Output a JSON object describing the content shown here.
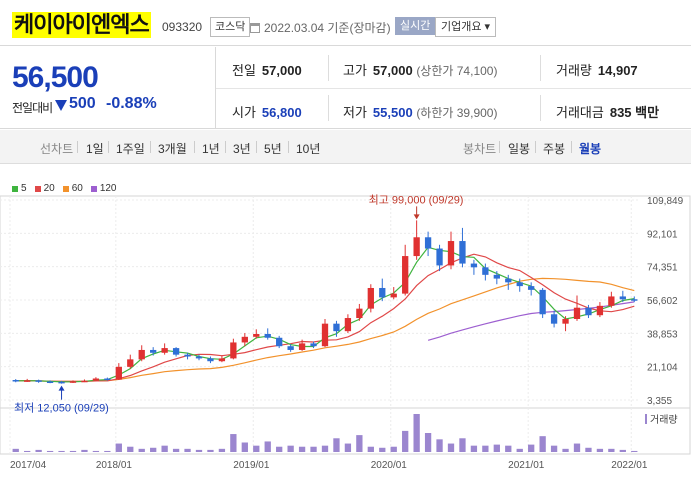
{
  "header": {
    "title": "케이아이엔엑스",
    "code": "093320",
    "market": "코스닥",
    "date": "2022.03.04 기준(장마감)",
    "realtime": "실시간",
    "overview": "기업개요 ▾"
  },
  "summary": {
    "price": "56,500",
    "change_label": "전일대비",
    "change": "500",
    "change_pct": "-0.88%",
    "prev_label": "전일",
    "prev": "57,000",
    "high_label": "고가",
    "high": "57,000",
    "upper_limit": "(상한가 74,100)",
    "volume_label": "거래량",
    "volume": "14,907",
    "open_label": "시가",
    "open": "56,800",
    "low_label": "저가",
    "low": "55,500",
    "lower_limit": "(하한가 39,900)",
    "amount_label": "거래대금",
    "amount": "835 백만"
  },
  "toolbar": {
    "line_chart": "선차트",
    "periods": [
      "1일",
      "1주일",
      "3개월",
      "1년",
      "3년",
      "5년",
      "10년"
    ],
    "candle_chart": "봉차트",
    "candles": [
      "일봉",
      "주봉",
      "월봉"
    ],
    "active_candle": "월봉"
  },
  "colors": {
    "up": "#e03131",
    "down": "#2f6fd6",
    "ma5": "#3fb43f",
    "ma20": "#e04848",
    "ma60": "#f2922c",
    "ma120": "#9d5fd0",
    "volume": "#9b86cf"
  },
  "chart_data": {
    "type": "candlestick",
    "legend": [
      "5",
      "20",
      "60",
      "120"
    ],
    "y_ticks": [
      "109,849",
      "92,101",
      "74,351",
      "56,602",
      "38,853",
      "21,104",
      "3,355"
    ],
    "ylim": [
      3355,
      109849
    ],
    "x_ticks": [
      "2017/04",
      "2018/01",
      "2019/01",
      "2020/01",
      "2021/01",
      "2022/01"
    ],
    "volume_label": "거래량",
    "annotation_high": "최고 99,000 (09/29)",
    "annotation_low": "최저 12,050 (09/29)",
    "candles": [
      {
        "o": 14000,
        "c": 13500,
        "h": 14500,
        "l": 12800
      },
      {
        "o": 13500,
        "c": 13800,
        "h": 14600,
        "l": 13000
      },
      {
        "o": 13800,
        "c": 13200,
        "h": 14200,
        "l": 12500
      },
      {
        "o": 13200,
        "c": 13000,
        "h": 13800,
        "l": 12300
      },
      {
        "o": 13000,
        "c": 12800,
        "h": 13500,
        "l": 12050
      },
      {
        "o": 12800,
        "c": 13300,
        "h": 13800,
        "l": 12400
      },
      {
        "o": 13300,
        "c": 13600,
        "h": 14300,
        "l": 12900
      },
      {
        "o": 13600,
        "c": 14800,
        "h": 15500,
        "l": 13300
      },
      {
        "o": 14800,
        "c": 14200,
        "h": 15300,
        "l": 13700
      },
      {
        "o": 14200,
        "c": 21000,
        "h": 23000,
        "l": 14000
      },
      {
        "o": 21000,
        "c": 25000,
        "h": 27500,
        "l": 20000
      },
      {
        "o": 25000,
        "c": 30000,
        "h": 32500,
        "l": 24000
      },
      {
        "o": 30000,
        "c": 28500,
        "h": 31500,
        "l": 27000
      },
      {
        "o": 28500,
        "c": 31000,
        "h": 33500,
        "l": 27500
      },
      {
        "o": 31000,
        "c": 27500,
        "h": 31500,
        "l": 26500
      },
      {
        "o": 27500,
        "c": 26500,
        "h": 28500,
        "l": 25000
      },
      {
        "o": 26500,
        "c": 25500,
        "h": 27500,
        "l": 24500
      },
      {
        "o": 25500,
        "c": 24000,
        "h": 26500,
        "l": 23000
      },
      {
        "o": 24000,
        "c": 25500,
        "h": 27000,
        "l": 23500
      },
      {
        "o": 25500,
        "c": 34000,
        "h": 36000,
        "l": 25000
      },
      {
        "o": 34000,
        "c": 37000,
        "h": 39000,
        "l": 32000
      },
      {
        "o": 37000,
        "c": 38500,
        "h": 41000,
        "l": 36000
      },
      {
        "o": 38500,
        "c": 36500,
        "h": 41500,
        "l": 35500
      },
      {
        "o": 36500,
        "c": 32000,
        "h": 37500,
        "l": 31000
      },
      {
        "o": 32000,
        "c": 30000,
        "h": 33000,
        "l": 29000
      },
      {
        "o": 30000,
        "c": 33500,
        "h": 35500,
        "l": 29500
      },
      {
        "o": 33500,
        "c": 32000,
        "h": 34500,
        "l": 31000
      },
      {
        "o": 32000,
        "c": 44000,
        "h": 46500,
        "l": 31500
      },
      {
        "o": 44000,
        "c": 40000,
        "h": 45500,
        "l": 37000
      },
      {
        "o": 40000,
        "c": 47000,
        "h": 49000,
        "l": 39000
      },
      {
        "o": 47000,
        "c": 52000,
        "h": 54500,
        "l": 45500
      },
      {
        "o": 52000,
        "c": 63000,
        "h": 65000,
        "l": 50000
      },
      {
        "o": 63000,
        "c": 58000,
        "h": 68000,
        "l": 56000
      },
      {
        "o": 58000,
        "c": 60000,
        "h": 63500,
        "l": 57000
      },
      {
        "o": 60000,
        "c": 80000,
        "h": 86000,
        "l": 59000
      },
      {
        "o": 80000,
        "c": 90000,
        "h": 99000,
        "l": 78000
      },
      {
        "o": 90000,
        "c": 84000,
        "h": 93000,
        "l": 80000
      },
      {
        "o": 84000,
        "c": 75000,
        "h": 86000,
        "l": 72000
      },
      {
        "o": 75000,
        "c": 88000,
        "h": 93000,
        "l": 73000
      },
      {
        "o": 88000,
        "c": 76000,
        "h": 95000,
        "l": 74000
      },
      {
        "o": 76000,
        "c": 74000,
        "h": 78000,
        "l": 70000
      },
      {
        "o": 74000,
        "c": 70000,
        "h": 76000,
        "l": 67000
      },
      {
        "o": 70000,
        "c": 68000,
        "h": 72000,
        "l": 65000
      },
      {
        "o": 68000,
        "c": 66000,
        "h": 70000,
        "l": 62000
      },
      {
        "o": 66000,
        "c": 64000,
        "h": 68000,
        "l": 61000
      },
      {
        "o": 64000,
        "c": 62000,
        "h": 66000,
        "l": 59000
      },
      {
        "o": 62000,
        "c": 49000,
        "h": 63000,
        "l": 47000
      },
      {
        "o": 49000,
        "c": 44000,
        "h": 51000,
        "l": 42000
      },
      {
        "o": 44000,
        "c": 46500,
        "h": 48000,
        "l": 40000
      },
      {
        "o": 46500,
        "c": 52500,
        "h": 59000,
        "l": 45500
      },
      {
        "o": 52500,
        "c": 48500,
        "h": 54000,
        "l": 47000
      },
      {
        "o": 48500,
        "c": 53500,
        "h": 55500,
        "l": 47500
      },
      {
        "o": 53500,
        "c": 58500,
        "h": 61000,
        "l": 52500
      },
      {
        "o": 58500,
        "c": 57000,
        "h": 61500,
        "l": 55500
      },
      {
        "o": 57000,
        "c": 56500,
        "h": 58500,
        "l": 55500
      }
    ],
    "volumes": [
      3,
      1,
      2,
      1,
      1,
      1,
      2,
      1,
      1,
      8,
      5,
      3,
      4,
      6,
      3,
      3,
      2,
      2,
      3,
      17,
      9,
      6,
      10,
      5,
      6,
      5,
      5,
      6,
      13,
      8,
      16,
      5,
      4,
      5,
      20,
      36,
      18,
      12,
      8,
      13,
      6,
      6,
      7,
      6,
      3,
      7,
      15,
      6,
      3,
      8,
      4,
      3,
      3,
      2,
      1
    ]
  }
}
